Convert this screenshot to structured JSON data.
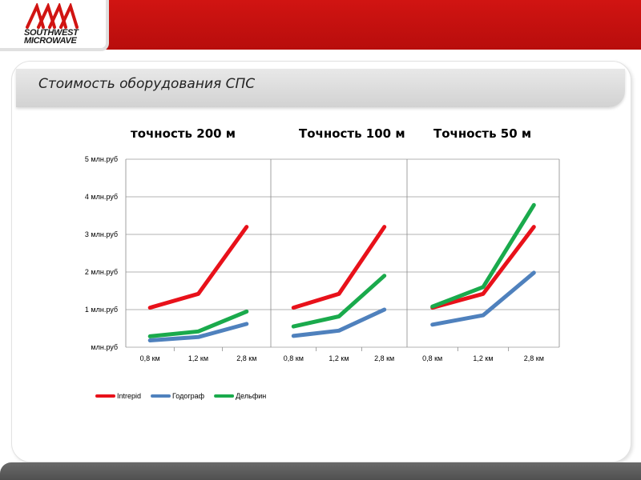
{
  "header": {
    "logo_text_line1": "SOUTHWEST",
    "logo_text_line2": "MICROWAVE",
    "brand_color": "#c8100f"
  },
  "slide": {
    "title": "Стоимость оборудования СПС"
  },
  "chart_data": {
    "type": "line",
    "y_ticks": [
      "млн.руб",
      "1 млн.руб",
      "2 млн.руб",
      "3 млн.руб",
      "4 млн.руб",
      "5 млн.руб"
    ],
    "ylim": [
      0,
      5
    ],
    "grid": true,
    "legend_position": "bottom-left",
    "legend": [
      "Intrepid",
      "Годограф",
      "Дельфин"
    ],
    "series_colors": [
      "#e8111a",
      "#4f81bd",
      "#1aaa4c"
    ],
    "panels": [
      {
        "title": "точность 200 м",
        "categories": [
          "0,8 км",
          "1,2 км",
          "2,8 км"
        ],
        "series": [
          {
            "name": "Intrepid",
            "values": [
              1.05,
              1.42,
              3.2
            ]
          },
          {
            "name": "Годограф",
            "values": [
              0.18,
              0.27,
              0.62
            ]
          },
          {
            "name": "Дельфин",
            "values": [
              0.29,
              0.42,
              0.95
            ]
          }
        ]
      },
      {
        "title": "Точность 100 м",
        "categories": [
          "0,8 км",
          "1,2 км",
          "2,8 км"
        ],
        "series": [
          {
            "name": "Intrepid",
            "values": [
              1.05,
              1.42,
              3.2
            ]
          },
          {
            "name": "Годограф",
            "values": [
              0.3,
              0.44,
              1.0
            ]
          },
          {
            "name": "Дельфин",
            "values": [
              0.55,
              0.82,
              1.9
            ]
          }
        ]
      },
      {
        "title": "Точность 50 м",
        "categories": [
          "0,8 км",
          "1,2 км",
          "2,8 км"
        ],
        "series": [
          {
            "name": "Intrepid",
            "values": [
              1.05,
              1.42,
              3.2
            ]
          },
          {
            "name": "Годограф",
            "values": [
              0.6,
              0.85,
              1.98
            ]
          },
          {
            "name": "Дельфин",
            "values": [
              1.08,
              1.6,
              3.78
            ]
          }
        ]
      }
    ]
  }
}
